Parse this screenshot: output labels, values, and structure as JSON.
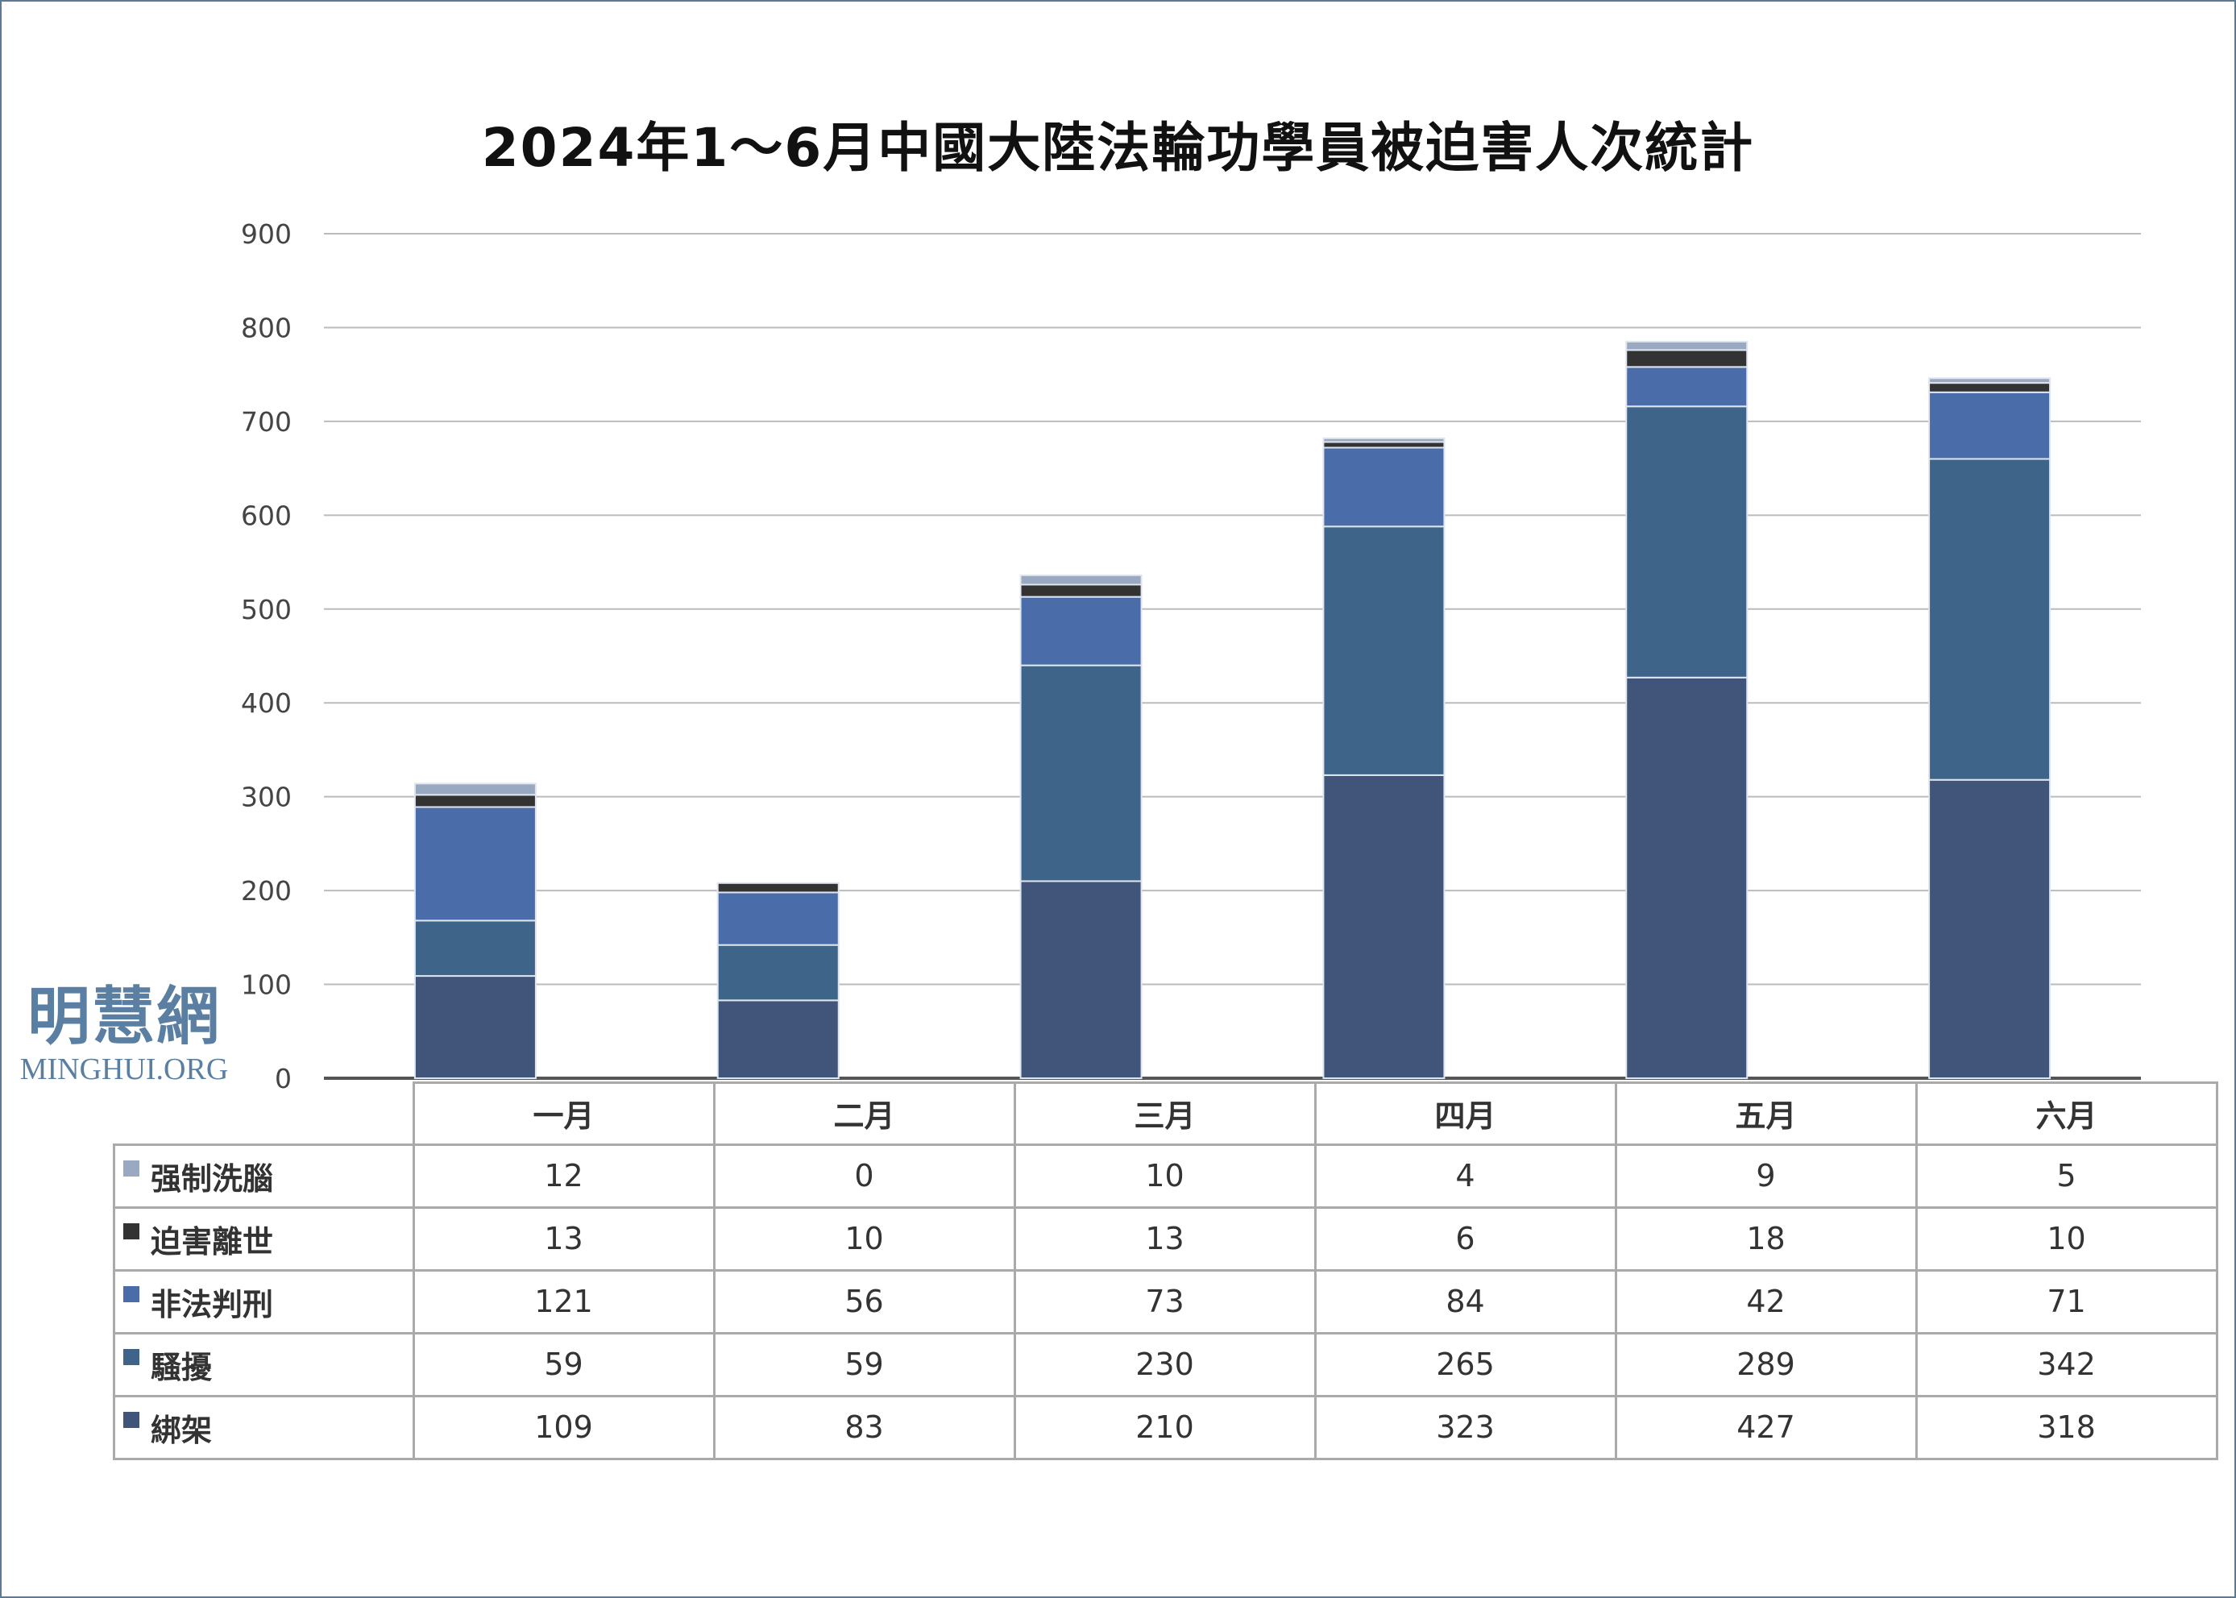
{
  "chart_data": {
    "type": "bar",
    "stacked": true,
    "title": "2024年1～6月中國大陸法輪功學員被迫害人次統計",
    "categories": [
      "一月",
      "二月",
      "三月",
      "四月",
      "五月",
      "六月"
    ],
    "ylim": [
      0,
      900
    ],
    "yticks": [
      0,
      100,
      200,
      300,
      400,
      500,
      600,
      700,
      800,
      900
    ],
    "grid": true,
    "legend": "table-bottom-left",
    "series": [
      {
        "name": "綁架",
        "color": "#41547a",
        "values": [
          109,
          83,
          210,
          323,
          427,
          318
        ]
      },
      {
        "name": "騷擾",
        "color": "#3e6589",
        "values": [
          59,
          59,
          230,
          265,
          289,
          342
        ]
      },
      {
        "name": "非法判刑",
        "color": "#4a6ca8",
        "values": [
          121,
          56,
          73,
          84,
          42,
          71
        ]
      },
      {
        "name": "迫害離世",
        "color": "#333333",
        "values": [
          13,
          10,
          13,
          6,
          18,
          10
        ]
      },
      {
        "name": "强制洗腦",
        "color": "#9aa9c2",
        "values": [
          12,
          0,
          10,
          4,
          9,
          5
        ]
      }
    ]
  },
  "logo": {
    "cn": "明慧網",
    "en": "MINGHUI.ORG"
  }
}
